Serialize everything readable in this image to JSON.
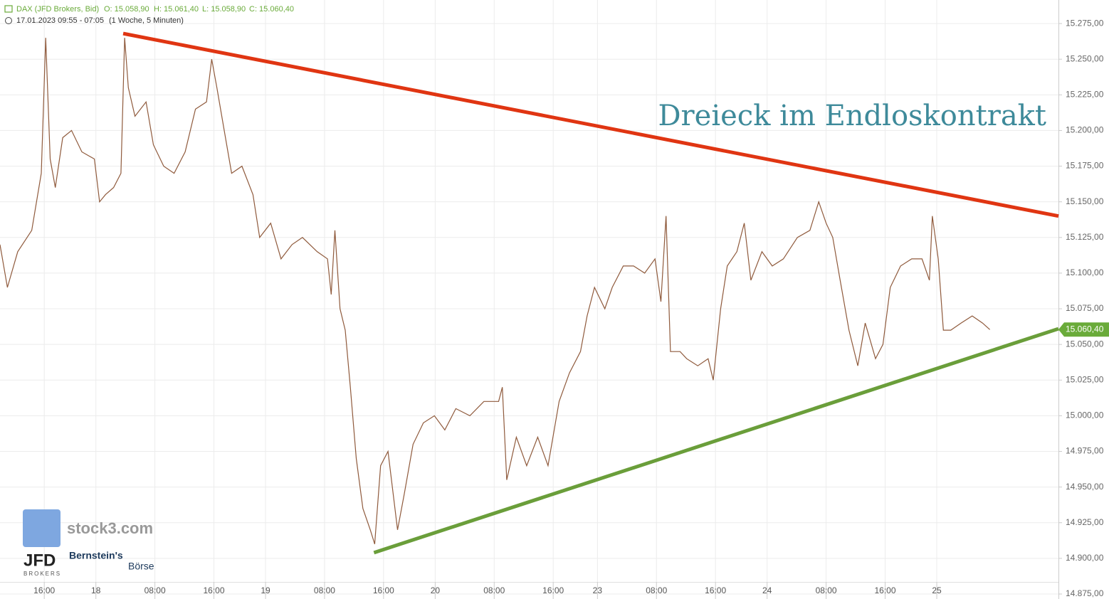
{
  "chart_data": {
    "type": "line",
    "title": "DAX (JFD Brokers, Bid)",
    "ohlc": [
      {
        "value": 15058.9,
        "label": "O: 15.058,90"
      },
      {
        "value": 15061.4,
        "label": "H: 15.061,40"
      },
      {
        "value": 15058.9,
        "label": "L: 15.058,90"
      },
      {
        "value": 15060.4,
        "label": "C: 15.060,40"
      }
    ],
    "subtitle": "17.01.2023 09:55 - 07:05",
    "period": "(1 Woche, 5 Minuten)",
    "annotation": "Dreieck im Endloskontrakt",
    "last_price": {
      "value": 15060.4,
      "label": "15.060,40"
    },
    "last_price_color": "#6aab3a",
    "logos": {
      "stock3": "stock3.com",
      "jfd": "JFD",
      "jfd_sub": "BROKERS",
      "bernstein": "Bernstein's",
      "boerse": "Börse"
    },
    "xlim": [
      0,
      143.5
    ],
    "xticks": [
      {
        "value": 6,
        "label": "16:00"
      },
      {
        "value": 13,
        "label": "18"
      },
      {
        "value": 21,
        "label": "08:00"
      },
      {
        "value": 29,
        "label": "16:00"
      },
      {
        "value": 36,
        "label": "19"
      },
      {
        "value": 44,
        "label": "08:00"
      },
      {
        "value": 52,
        "label": "16:00"
      },
      {
        "value": 59,
        "label": "20"
      },
      {
        "value": 67,
        "label": "08:00"
      },
      {
        "value": 75,
        "label": "16:00"
      },
      {
        "value": 81,
        "label": "23"
      },
      {
        "value": 89,
        "label": "08:00"
      },
      {
        "value": 97,
        "label": "16:00"
      },
      {
        "value": 104,
        "label": "24"
      },
      {
        "value": 112,
        "label": "08:00"
      },
      {
        "value": 120,
        "label": "16:00"
      },
      {
        "value": 127,
        "label": "25"
      }
    ],
    "ylim": [
      14871.5,
      15291.5
    ],
    "yticks": [
      {
        "value": 14875,
        "label": "14.875,00"
      },
      {
        "value": 14900,
        "label": "14.900,00"
      },
      {
        "value": 14925,
        "label": "14.925,00"
      },
      {
        "value": 14950,
        "label": "14.950,00"
      },
      {
        "value": 14975,
        "label": "14.975,00"
      },
      {
        "value": 15000,
        "label": "15.000,00"
      },
      {
        "value": 15025,
        "label": "15.025,00"
      },
      {
        "value": 15050,
        "label": "15.050,00"
      },
      {
        "value": 15075,
        "label": "15.075,00"
      },
      {
        "value": 15100,
        "label": "15.100,00"
      },
      {
        "value": 15125,
        "label": "15.125,00"
      },
      {
        "value": 15150,
        "label": "15.150,00"
      },
      {
        "value": 15175,
        "label": "15.175,00"
      },
      {
        "value": 15200,
        "label": "15.200,00"
      },
      {
        "value": 15225,
        "label": "15.225,00"
      },
      {
        "value": 15250,
        "label": "15.250,00"
      },
      {
        "value": 15275,
        "label": "15.275,00"
      }
    ],
    "grid": true,
    "x": [
      0,
      1.0,
      2.4,
      4.3,
      5.6,
      6.2,
      6.8,
      7.5,
      8.5,
      9.7,
      11.1,
      12.8,
      13.5,
      14.3,
      15.4,
      16.4,
      16.9,
      17.4,
      18.3,
      19.8,
      20.8,
      22.2,
      23.6,
      25.1,
      26.5,
      28.0,
      28.7,
      29.4,
      30.4,
      31.4,
      32.8,
      34.3,
      35.2,
      36.7,
      38.1,
      39.6,
      41.0,
      43.0,
      44.4,
      44.9,
      45.4,
      46.1,
      46.8,
      47.5,
      48.3,
      49.2,
      50.2,
      50.8,
      51.6,
      52.6,
      53.9,
      54.8,
      56.0,
      57.4,
      58.9,
      60.3,
      61.8,
      63.7,
      65.6,
      67.6,
      68.1,
      68.7,
      70.0,
      71.4,
      72.9,
      74.3,
      75.8,
      77.2,
      78.7,
      79.6,
      80.6,
      82.0,
      83.0,
      84.5,
      85.9,
      87.4,
      88.8,
      89.6,
      90.3,
      90.9,
      92.2,
      93.1,
      94.6,
      96.0,
      96.7,
      97.7,
      98.6,
      99.9,
      100.9,
      101.8,
      103.3,
      104.7,
      106.2,
      108.1,
      109.8,
      111.0,
      112.0,
      112.9,
      113.9,
      115.1,
      116.3,
      117.3,
      118.7,
      119.7,
      120.7,
      122.1,
      123.6,
      125.0,
      126.0,
      126.4,
      127.2,
      127.9,
      128.9,
      130.3,
      131.8,
      133.2,
      134.2
    ],
    "series": [
      {
        "color": "#8f5a3c",
        "values": [
          15120,
          15090,
          15115,
          15130,
          15170,
          15265,
          15180,
          15160,
          15195,
          15200,
          15185,
          15180,
          15150,
          15155,
          15160,
          15170,
          15265,
          15230,
          15210,
          15220,
          15190,
          15175,
          15170,
          15185,
          15215,
          15220,
          15250,
          15230,
          15200,
          15170,
          15175,
          15155,
          15125,
          15135,
          15110,
          15120,
          15125,
          15115,
          15110,
          15085,
          15130,
          15075,
          15060,
          15020,
          14970,
          14935,
          14920,
          14910,
          14965,
          14975,
          14920,
          14945,
          14980,
          14995,
          15000,
          14990,
          15005,
          15000,
          15010,
          15010,
          15020,
          14955,
          14985,
          14965,
          14985,
          14965,
          15010,
          15030,
          15045,
          15070,
          15090,
          15075,
          15090,
          15105,
          15105,
          15100,
          15110,
          15080,
          15140,
          15045,
          15045,
          15040,
          15035,
          15040,
          15025,
          15075,
          15105,
          15115,
          15135,
          15095,
          15115,
          15105,
          15110,
          15125,
          15130,
          15150,
          15135,
          15125,
          15095,
          15060,
          15035,
          15065,
          15040,
          15050,
          15090,
          15105,
          15110,
          15110,
          15095,
          15140,
          15110,
          15060,
          15060,
          15065,
          15070,
          15065,
          15060.4
        ]
      }
    ],
    "trendlines": [
      {
        "color": "#e03512",
        "x": [
          16.7,
          143.5
        ],
        "y": [
          15268,
          15140
        ]
      },
      {
        "color": "#6a9e3a",
        "x": [
          50.7,
          143.5
        ],
        "y": [
          14904,
          15061
        ]
      }
    ]
  }
}
